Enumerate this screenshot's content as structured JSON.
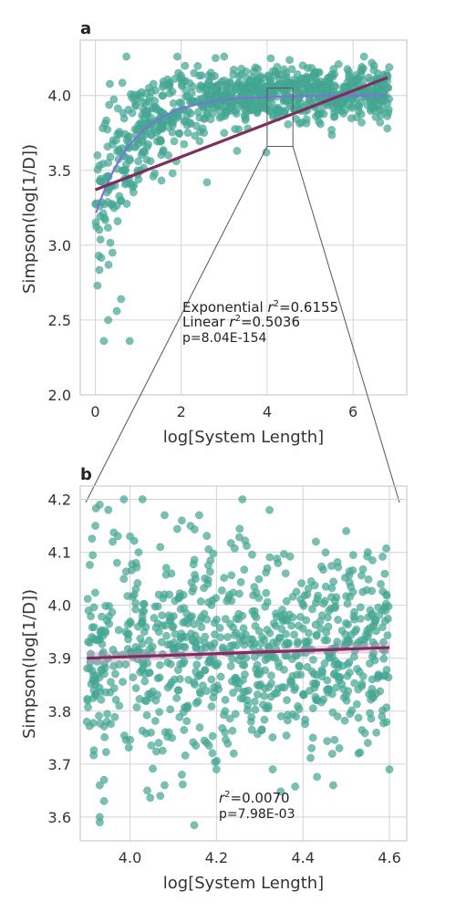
{
  "chart_data": [
    {
      "panel": "a",
      "type": "scatter",
      "xlabel": "log[System Length]",
      "ylabel": "Simpson(log[1/D])",
      "xlim": [
        -0.35,
        7.25
      ],
      "ylim": [
        2.0,
        4.37
      ],
      "xticks": [
        0,
        2,
        4,
        6
      ],
      "yticks": [
        2.0,
        2.5,
        3.0,
        3.5,
        4.0
      ],
      "xtick_labels": [
        "0",
        "2",
        "4",
        "6"
      ],
      "ytick_labels": [
        "2.0",
        "2.5",
        "3.0",
        "3.5",
        "4.0"
      ],
      "grid": true,
      "point_color": "#45a894",
      "linear_fit": {
        "x": [
          0,
          6.8
        ],
        "y": [
          3.37,
          4.12
        ],
        "color": "#7e2d5f"
      },
      "exponential_fit": {
        "x_range": [
          0.02,
          6.8
        ],
        "asymptote": 4.0,
        "amplitude": 0.8,
        "rate": 1.1,
        "color": "#7b73d6"
      },
      "zoom_box": {
        "x": [
          4.0,
          4.6
        ],
        "y": [
          3.66,
          4.05
        ]
      },
      "annotations": {
        "exp_prefix": "Exponential ",
        "exp_value": "=0.6155",
        "lin_prefix": "Linear ",
        "lin_value": "=0.5036",
        "r_symbol": "r",
        "r_exp": "2",
        "pvalue": "p=8.04E-154"
      },
      "sample_points": [
        [
          0.05,
          2.73
        ],
        [
          0.08,
          2.93
        ],
        [
          0.1,
          3.43
        ],
        [
          0.05,
          3.6
        ],
        [
          0.2,
          2.36
        ],
        [
          0.3,
          2.5
        ],
        [
          0.6,
          2.64
        ],
        [
          0.5,
          2.56
        ],
        [
          0.8,
          2.36
        ],
        [
          0.3,
          3.55
        ],
        [
          0.6,
          3.3
        ],
        [
          1.0,
          3.56
        ],
        [
          0.9,
          3.4
        ],
        [
          1.5,
          3.85
        ],
        [
          1.5,
          3.7
        ],
        [
          1.7,
          3.6
        ],
        [
          2.0,
          3.95
        ],
        [
          2.5,
          3.78
        ],
        [
          3.0,
          3.75
        ],
        [
          3.0,
          4.1
        ],
        [
          3.2,
          3.96
        ],
        [
          3.5,
          3.85
        ],
        [
          3.6,
          4.05
        ],
        [
          2.8,
          4.25
        ],
        [
          3.0,
          4.26
        ],
        [
          2.5,
          3.95
        ],
        [
          4.5,
          3.95
        ],
        [
          5.0,
          4.02
        ],
        [
          5.5,
          3.96
        ],
        [
          6.0,
          3.98
        ],
        [
          6.5,
          3.9
        ],
        [
          6.8,
          4.05
        ],
        [
          6.8,
          3.78
        ],
        [
          5.5,
          3.77
        ],
        [
          3.98,
          3.62
        ],
        [
          4.3,
          3.9
        ],
        [
          1.2,
          3.57
        ],
        [
          2.2,
          3.82
        ],
        [
          0.4,
          2.95
        ],
        [
          0.7,
          3.5
        ],
        [
          1.1,
          3.7
        ],
        [
          1.3,
          3.85
        ],
        [
          1.8,
          3.48
        ],
        [
          2.6,
          3.42
        ],
        [
          4.8,
          3.82
        ],
        [
          5.2,
          4.08
        ],
        [
          6.2,
          3.82
        ],
        [
          6.6,
          4.1
        ],
        [
          3.3,
          3.63
        ],
        [
          2.3,
          4.15
        ]
      ]
    },
    {
      "panel": "b",
      "type": "scatter",
      "xlabel": "log[System Length]",
      "ylabel": "Simpson(log[1/D])",
      "xlim": [
        3.885,
        4.64
      ],
      "ylim": [
        3.555,
        4.225
      ],
      "xticks": [
        4.0,
        4.2,
        4.4,
        4.6
      ],
      "yticks": [
        3.6,
        3.7,
        3.8,
        3.9,
        4.0,
        4.1,
        4.2
      ],
      "xtick_labels": [
        "4.0",
        "4.2",
        "4.4",
        "4.6"
      ],
      "ytick_labels": [
        "3.6",
        "3.7",
        "3.8",
        "3.9",
        "4.0",
        "4.1",
        "4.2"
      ],
      "grid": true,
      "point_color": "#45a894",
      "linear_fit": {
        "x": [
          3.9,
          4.6
        ],
        "y": [
          3.9,
          3.92
        ],
        "color": "#7e2d5f"
      },
      "annotations": {
        "r_symbol": "r",
        "r_exp": "2",
        "r_value": "=0.0070",
        "pvalue": "p=7.98E-03"
      },
      "sample_points": [
        [
          3.93,
          4.19
        ],
        [
          3.95,
          4.18
        ],
        [
          3.92,
          4.15
        ],
        [
          3.96,
          4.12
        ],
        [
          3.97,
          4.08
        ],
        [
          4.0,
          4.13
        ],
        [
          4.02,
          4.1
        ],
        [
          4.07,
          4.11
        ],
        [
          4.08,
          4.17
        ],
        [
          4.12,
          4.16
        ],
        [
          4.14,
          4.15
        ],
        [
          4.16,
          4.17
        ],
        [
          4.26,
          4.2
        ],
        [
          4.43,
          4.12
        ],
        [
          4.5,
          4.14
        ],
        [
          4.55,
          4.1
        ],
        [
          4.58,
          4.04
        ],
        [
          3.93,
          3.59
        ],
        [
          3.93,
          3.6
        ],
        [
          3.94,
          3.63
        ],
        [
          3.93,
          3.66
        ],
        [
          3.94,
          3.67
        ],
        [
          4.04,
          3.65
        ],
        [
          4.07,
          3.64
        ],
        [
          4.08,
          3.66
        ],
        [
          4.12,
          3.68
        ],
        [
          4.2,
          3.69
        ],
        [
          4.24,
          3.72
        ],
        [
          4.33,
          3.69
        ],
        [
          4.42,
          3.73
        ],
        [
          4.47,
          3.66
        ],
        [
          4.55,
          3.74
        ],
        [
          4.6,
          3.69
        ],
        [
          3.9,
          3.78
        ],
        [
          3.92,
          3.85
        ],
        [
          3.95,
          3.9
        ],
        [
          3.99,
          3.95
        ],
        [
          4.03,
          3.88
        ],
        [
          4.06,
          3.82
        ],
        [
          4.1,
          3.96
        ],
        [
          4.15,
          3.85
        ],
        [
          4.19,
          3.92
        ],
        [
          4.22,
          3.8
        ],
        [
          4.26,
          3.98
        ],
        [
          4.3,
          3.87
        ],
        [
          4.34,
          3.93
        ],
        [
          4.38,
          3.84
        ],
        [
          4.41,
          4.02
        ],
        [
          4.45,
          3.89
        ],
        [
          4.48,
          3.79
        ],
        [
          4.52,
          3.95
        ],
        [
          4.56,
          3.86
        ],
        [
          4.59,
          3.97
        ],
        [
          4.01,
          4.02
        ],
        [
          4.09,
          3.76
        ],
        [
          4.28,
          3.78
        ],
        [
          4.36,
          4.06
        ],
        [
          4.44,
          3.97
        ],
        [
          4.05,
          3.91
        ],
        [
          4.18,
          4.04
        ],
        [
          4.32,
          3.81
        ],
        [
          4.5,
          3.83
        ]
      ]
    }
  ]
}
